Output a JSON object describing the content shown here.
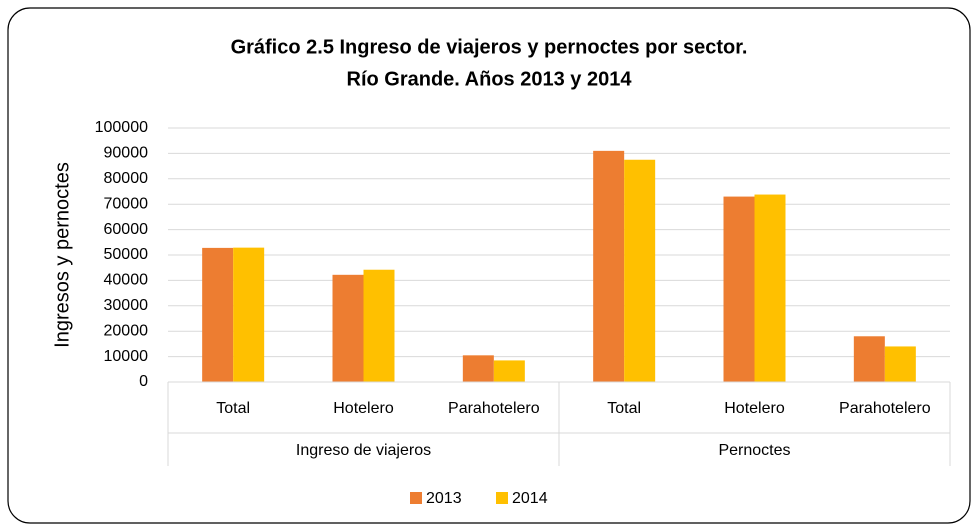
{
  "chart_data": {
    "type": "bar",
    "title": [
      "Gráfico 2.5 Ingreso de viajeros y pernoctes por sector.",
      "Río Grande. Años 2013 y 2014"
    ],
    "ylabel": "Ingresos y pernoctes",
    "groups": [
      {
        "name": "Ingreso de viajeros",
        "categories": [
          "Total",
          "Hotelero",
          "Parahotelero"
        ]
      },
      {
        "name": "Pernoctes",
        "categories": [
          "Total",
          "Hotelero",
          "Parahotelero"
        ]
      }
    ],
    "series": [
      {
        "name": "2013",
        "color": "#ed7d31",
        "values": [
          52800,
          42200,
          10500,
          91000,
          73000,
          18000
        ]
      },
      {
        "name": "2014",
        "color": "#ffc000",
        "values": [
          52900,
          44200,
          8500,
          87500,
          73800,
          14000
        ]
      }
    ],
    "ylim": [
      0,
      100000
    ],
    "yticks": [
      0,
      10000,
      20000,
      30000,
      40000,
      50000,
      60000,
      70000,
      80000,
      90000,
      100000
    ],
    "grid": true,
    "legend": "bottom"
  }
}
